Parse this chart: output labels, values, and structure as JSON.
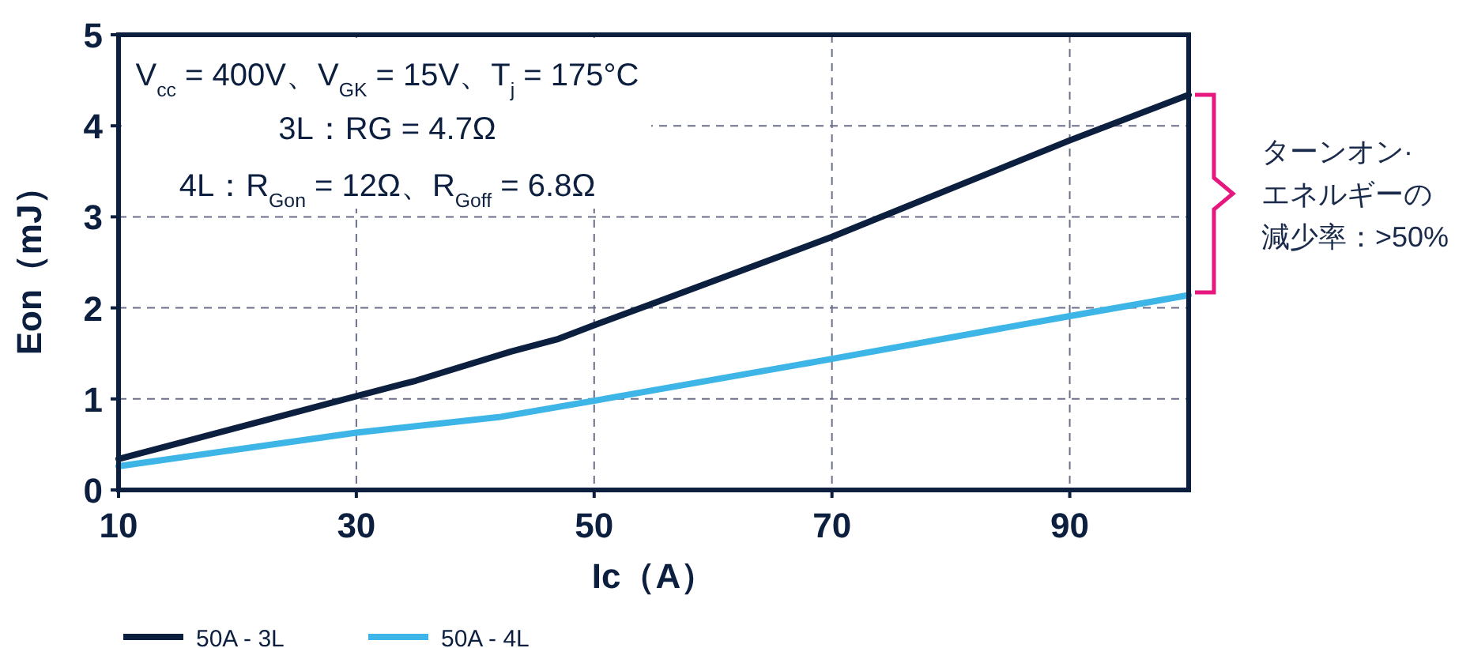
{
  "chart_data": {
    "type": "line",
    "x": [
      10,
      30,
      35,
      43,
      47,
      50,
      55,
      70,
      90,
      100
    ],
    "series": [
      {
        "name": "50A - 3L",
        "color": "#0c1f3f",
        "values": [
          0.34,
          1.03,
          1.2,
          1.52,
          1.66,
          1.81,
          2.05,
          2.78,
          3.84,
          4.34
        ]
      },
      {
        "name": "50A - 4L",
        "color": "#3db5e6",
        "x": [
          10,
          30,
          42,
          50,
          70,
          90,
          100
        ],
        "values": [
          0.26,
          0.63,
          0.8,
          0.98,
          1.44,
          1.91,
          2.14
        ]
      }
    ],
    "xlabel": "Ic（A）",
    "ylabel": "Eon（mJ）",
    "xlim": [
      10,
      100
    ],
    "xticks": [
      10,
      30,
      50,
      70,
      90
    ],
    "ylim": [
      0,
      5
    ],
    "yticks": [
      0,
      1,
      2,
      3,
      4,
      5
    ],
    "grid": true,
    "legend": "bottom left",
    "marker": "none",
    "line_style": "solid",
    "annotations": [
      "V$_{cc}$ = 400V、V$_{GK}$ = 15V、T$_{j}$ = 175°C",
      "3L：RG = 4.7Ω",
      "4L：R$_{Gon}$ = 12Ω、R$_{Goff}$ = 6.8Ω",
      "ターンオン·",
      "エネルギーの",
      "減少率：>50%"
    ]
  }
}
